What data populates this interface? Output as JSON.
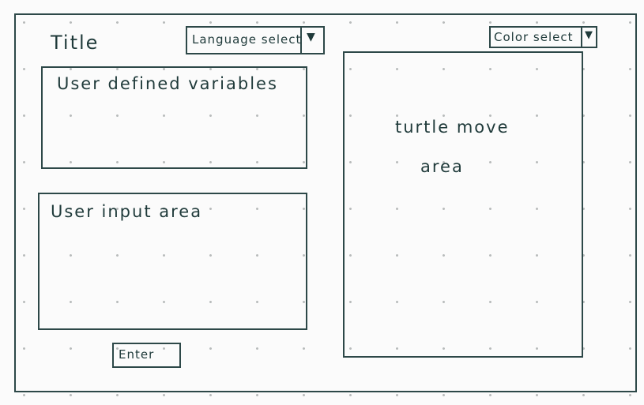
{
  "header": {
    "title": "Title"
  },
  "language_select": {
    "label": "Language select",
    "arrow_icon": "triangle-down"
  },
  "color_select": {
    "label": "Color select",
    "arrow_icon": "triangle-down"
  },
  "variables_panel": {
    "label": "User defined variables"
  },
  "input_panel": {
    "label": "User input area"
  },
  "enter_button": {
    "label": "Enter"
  },
  "turtle_area": {
    "line1": "turtle move",
    "line2": "area"
  }
}
